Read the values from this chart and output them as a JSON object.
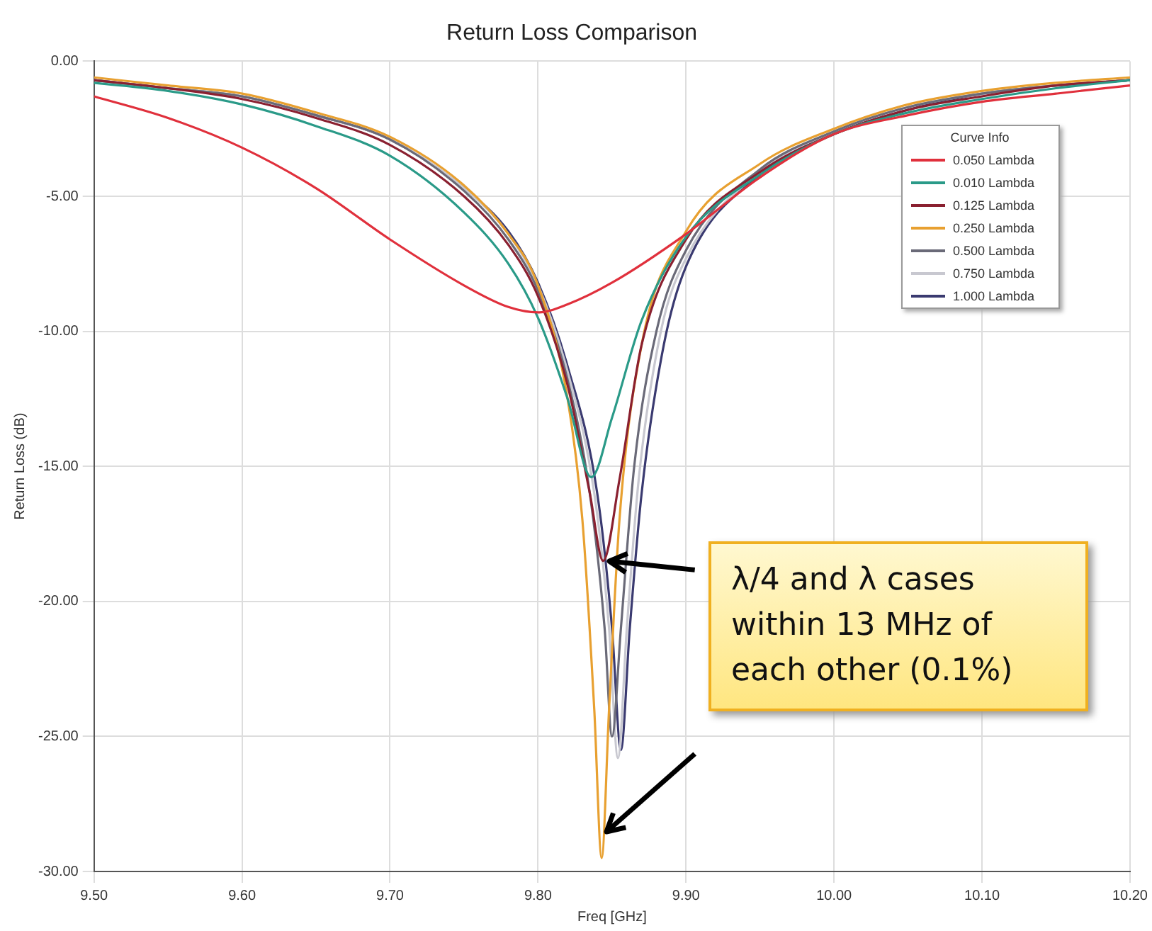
{
  "chart_data": {
    "type": "line",
    "title": "Return Loss Comparison",
    "xlabel": "Freq [GHz]",
    "ylabel": "Return Loss (dB)",
    "legend_title": "Curve Info",
    "xlim": [
      9.5,
      10.2
    ],
    "xticks": [
      {
        "value": 9.5,
        "label": "9.50"
      },
      {
        "value": 9.6,
        "label": "9.60"
      },
      {
        "value": 9.7,
        "label": "9.70"
      },
      {
        "value": 9.8,
        "label": "9.80"
      },
      {
        "value": 9.9,
        "label": "9.90"
      },
      {
        "value": 10,
        "label": "10.00"
      },
      {
        "value": 10.1,
        "label": "10.10"
      },
      {
        "value": 10.2,
        "label": "10.20"
      }
    ],
    "ylim": [
      -30,
      0
    ],
    "yticks": [
      {
        "value": -30,
        "label": "-30.00"
      },
      {
        "value": -25,
        "label": "-25.00"
      },
      {
        "value": -20,
        "label": "-20.00"
      },
      {
        "value": -15,
        "label": "-15.00"
      },
      {
        "value": -10,
        "label": "-10.00"
      },
      {
        "value": -5,
        "label": "-5.00"
      },
      {
        "value": 0,
        "label": "0.00"
      }
    ],
    "grid": true,
    "legend": "top right",
    "marker": "none",
    "line_style": "solid",
    "annotations": [
      {
        "text": "λ/4 and λ cases within 13 MHz of each other (0.1%)",
        "x": 9.844,
        "y": -18.5
      }
    ],
    "series": [
      {
        "name": "0.050 Lambda",
        "color": "#e0303c",
        "x": [
          9.5,
          9.55,
          9.6,
          9.65,
          9.7,
          9.75,
          9.78,
          9.8,
          9.82,
          9.85,
          9.9,
          9.95,
          10.0,
          10.05,
          10.1,
          10.15,
          10.2
        ],
        "values": [
          -1.3,
          -2.1,
          -3.2,
          -4.7,
          -6.6,
          -8.3,
          -9.1,
          -9.3,
          -9.0,
          -8.2,
          -6.4,
          -4.3,
          -2.7,
          -2.0,
          -1.5,
          -1.2,
          -0.9
        ]
      },
      {
        "name": "0.010 Lambda",
        "color": "#2a9a88",
        "x": [
          9.5,
          9.55,
          9.6,
          9.65,
          9.7,
          9.75,
          9.78,
          9.8,
          9.82,
          9.836,
          9.85,
          9.87,
          9.9,
          9.95,
          10.0,
          10.05,
          10.1,
          10.15,
          10.2
        ],
        "values": [
          -0.8,
          -1.1,
          -1.6,
          -2.4,
          -3.5,
          -5.6,
          -7.5,
          -9.5,
          -12.5,
          -15.4,
          -13.2,
          -9.6,
          -6.5,
          -4.2,
          -2.7,
          -1.9,
          -1.4,
          -1.0,
          -0.7
        ]
      },
      {
        "name": "0.125 Lambda",
        "color": "#8a2030",
        "x": [
          9.5,
          9.55,
          9.6,
          9.65,
          9.7,
          9.75,
          9.78,
          9.8,
          9.82,
          9.835,
          9.844,
          9.855,
          9.87,
          9.9,
          9.95,
          10.0,
          10.05,
          10.1,
          10.15,
          10.2
        ],
        "values": [
          -0.7,
          -1.0,
          -1.4,
          -2.1,
          -3.1,
          -5.0,
          -6.8,
          -8.7,
          -12.0,
          -16.0,
          -18.5,
          -15.5,
          -10.5,
          -6.6,
          -4.1,
          -2.7,
          -1.8,
          -1.3,
          -0.9,
          -0.7
        ]
      },
      {
        "name": "0.250 Lambda",
        "color": "#e8a030",
        "x": [
          9.5,
          9.55,
          9.6,
          9.65,
          9.7,
          9.75,
          9.78,
          9.8,
          9.82,
          9.83,
          9.838,
          9.843,
          9.848,
          9.855,
          9.87,
          9.9,
          9.95,
          10.0,
          10.05,
          10.1,
          10.15,
          10.2
        ],
        "values": [
          -0.6,
          -0.9,
          -1.2,
          -1.9,
          -2.8,
          -4.6,
          -6.4,
          -8.3,
          -12.5,
          -17.0,
          -24.0,
          -29.5,
          -24.0,
          -17.0,
          -10.5,
          -6.3,
          -3.8,
          -2.5,
          -1.6,
          -1.1,
          -0.8,
          -0.6
        ]
      },
      {
        "name": "0.500 Lambda",
        "color": "#6a6a78",
        "x": [
          9.5,
          9.55,
          9.6,
          9.65,
          9.7,
          9.75,
          9.78,
          9.8,
          9.82,
          9.835,
          9.845,
          9.85,
          9.856,
          9.865,
          9.88,
          9.9,
          9.95,
          10.0,
          10.05,
          10.1,
          10.15,
          10.2
        ],
        "values": [
          -0.7,
          -1.0,
          -1.3,
          -2.0,
          -2.9,
          -4.8,
          -6.6,
          -8.5,
          -11.8,
          -16.0,
          -21.0,
          -25.0,
          -21.0,
          -15.0,
          -10.0,
          -7.0,
          -4.0,
          -2.6,
          -1.7,
          -1.2,
          -0.9,
          -0.7
        ]
      },
      {
        "name": "0.750 Lambda",
        "color": "#c8c8d0",
        "x": [
          9.5,
          9.55,
          9.6,
          9.65,
          9.7,
          9.75,
          9.78,
          9.8,
          9.82,
          9.838,
          9.848,
          9.854,
          9.86,
          9.868,
          9.883,
          9.9,
          9.95,
          10.0,
          10.05,
          10.1,
          10.15,
          10.2
        ],
        "values": [
          -0.7,
          -1.0,
          -1.3,
          -2.0,
          -2.9,
          -4.7,
          -6.4,
          -8.3,
          -11.5,
          -16.0,
          -21.0,
          -25.8,
          -21.0,
          -15.5,
          -10.0,
          -7.3,
          -4.1,
          -2.6,
          -1.7,
          -1.2,
          -0.9,
          -0.7
        ]
      },
      {
        "name": "1.000 Lambda",
        "color": "#3a3a70",
        "x": [
          9.5,
          9.55,
          9.6,
          9.65,
          9.7,
          9.75,
          9.78,
          9.8,
          9.82,
          9.84,
          9.85,
          9.856,
          9.862,
          9.87,
          9.885,
          9.9,
          9.95,
          10.0,
          10.05,
          10.1,
          10.15,
          10.2
        ],
        "values": [
          -0.7,
          -1.0,
          -1.3,
          -2.0,
          -2.9,
          -4.7,
          -6.3,
          -8.2,
          -11.3,
          -16.0,
          -21.0,
          -25.5,
          -21.0,
          -16.0,
          -10.5,
          -7.6,
          -4.2,
          -2.7,
          -1.8,
          -1.2,
          -0.9,
          -0.7
        ]
      }
    ]
  }
}
